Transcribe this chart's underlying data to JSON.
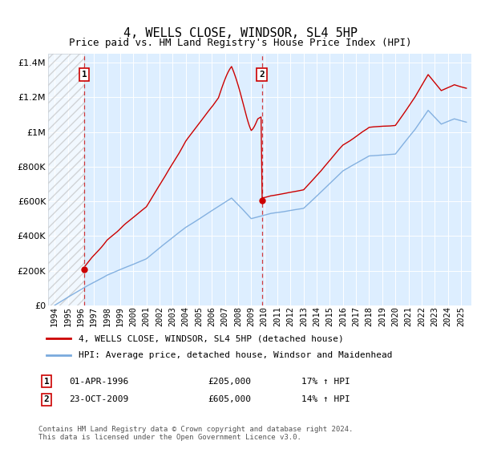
{
  "title": "4, WELLS CLOSE, WINDSOR, SL4 5HP",
  "subtitle": "Price paid vs. HM Land Registry's House Price Index (HPI)",
  "legend_line1": "4, WELLS CLOSE, WINDSOR, SL4 5HP (detached house)",
  "legend_line2": "HPI: Average price, detached house, Windsor and Maidenhead",
  "annotation1_label": "1",
  "annotation1_date": "01-APR-1996",
  "annotation1_price": "£205,000",
  "annotation1_hpi": "17% ↑ HPI",
  "annotation2_label": "2",
  "annotation2_date": "23-OCT-2009",
  "annotation2_price": "£605,000",
  "annotation2_hpi": "14% ↑ HPI",
  "footer": "Contains HM Land Registry data © Crown copyright and database right 2024.\nThis data is licensed under the Open Government Licence v3.0.",
  "transaction1_year": 1996.25,
  "transaction1_price": 205000,
  "transaction2_year": 2009.81,
  "transaction2_price": 605000,
  "red_line_color": "#cc0000",
  "blue_line_color": "#7aaadd",
  "background_color": "#ddeeff",
  "ylim": [
    0,
    1450000
  ],
  "xlim_start": 1993.5,
  "xlim_end": 2025.8,
  "years_start": 1994,
  "years_end": 2025
}
